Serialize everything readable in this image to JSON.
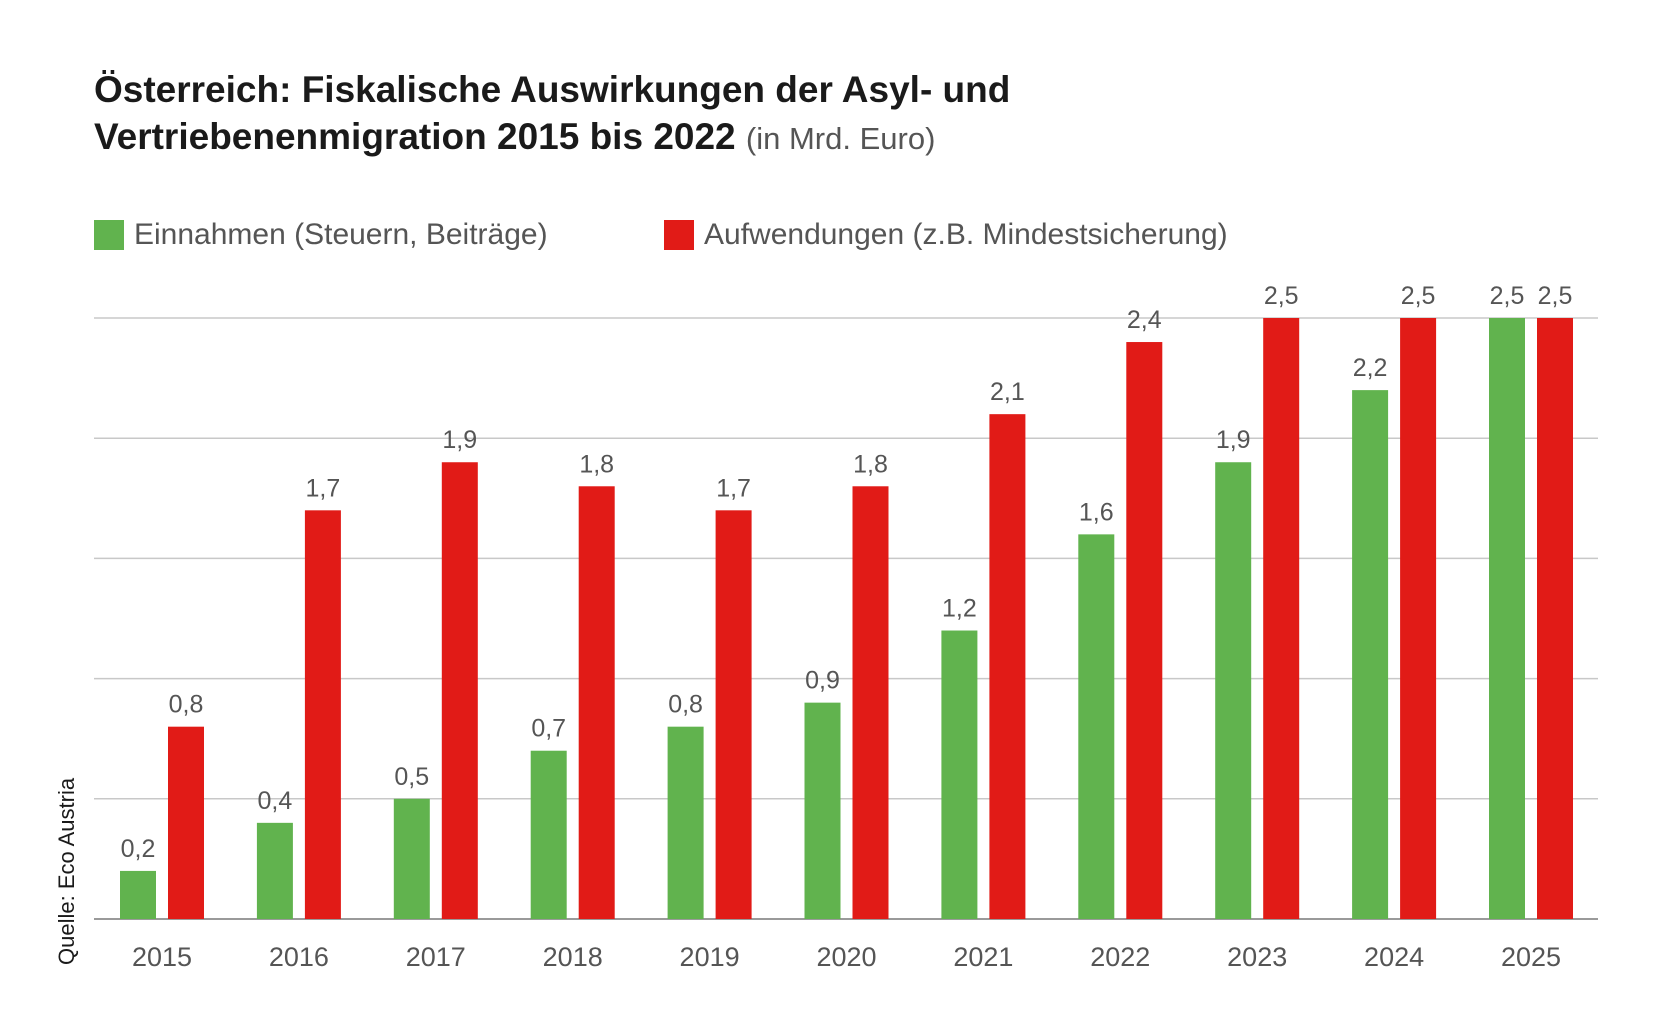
{
  "title": {
    "line1": "Österreich: Fiskalische Auswirkungen der Asyl- und",
    "line2": "Vertriebenenmigration 2015 bis 2022",
    "unit": "(in Mrd. Euro)"
  },
  "source": "Quelle: Eco Austria",
  "colors": {
    "einnahmen": "#61b34e",
    "aufwendungen": "#e11b17",
    "grid": "#c8c8c8"
  },
  "chart_data": {
    "type": "bar",
    "categories": [
      "2015",
      "2016",
      "2017",
      "2018",
      "2019",
      "2020",
      "2021",
      "2022",
      "2023",
      "2024",
      "2025"
    ],
    "series": [
      {
        "name": "Einnahmen (Steuern, Beiträge)",
        "values": [
          0.2,
          0.4,
          0.5,
          0.7,
          0.8,
          0.9,
          1.2,
          1.6,
          1.9,
          2.2,
          2.5
        ],
        "labels": [
          "0,2",
          "0,4",
          "0,5",
          "0,7",
          "0,8",
          "0,9",
          "1,2",
          "1,6",
          "1,9",
          "2,2",
          "2,5"
        ]
      },
      {
        "name": "Aufwendungen (z.B. Mindestsicherung)",
        "values": [
          0.8,
          1.7,
          1.9,
          1.8,
          1.7,
          1.8,
          2.1,
          2.4,
          2.5,
          2.5,
          2.5
        ],
        "labels": [
          "0,8",
          "1,7",
          "1,9",
          "1,8",
          "1,7",
          "1,8",
          "2,1",
          "2,4",
          "2,5",
          "2,5",
          "2,5"
        ]
      }
    ],
    "ylim": [
      0,
      2.5
    ],
    "grid": true,
    "legend_position": "top-left"
  }
}
